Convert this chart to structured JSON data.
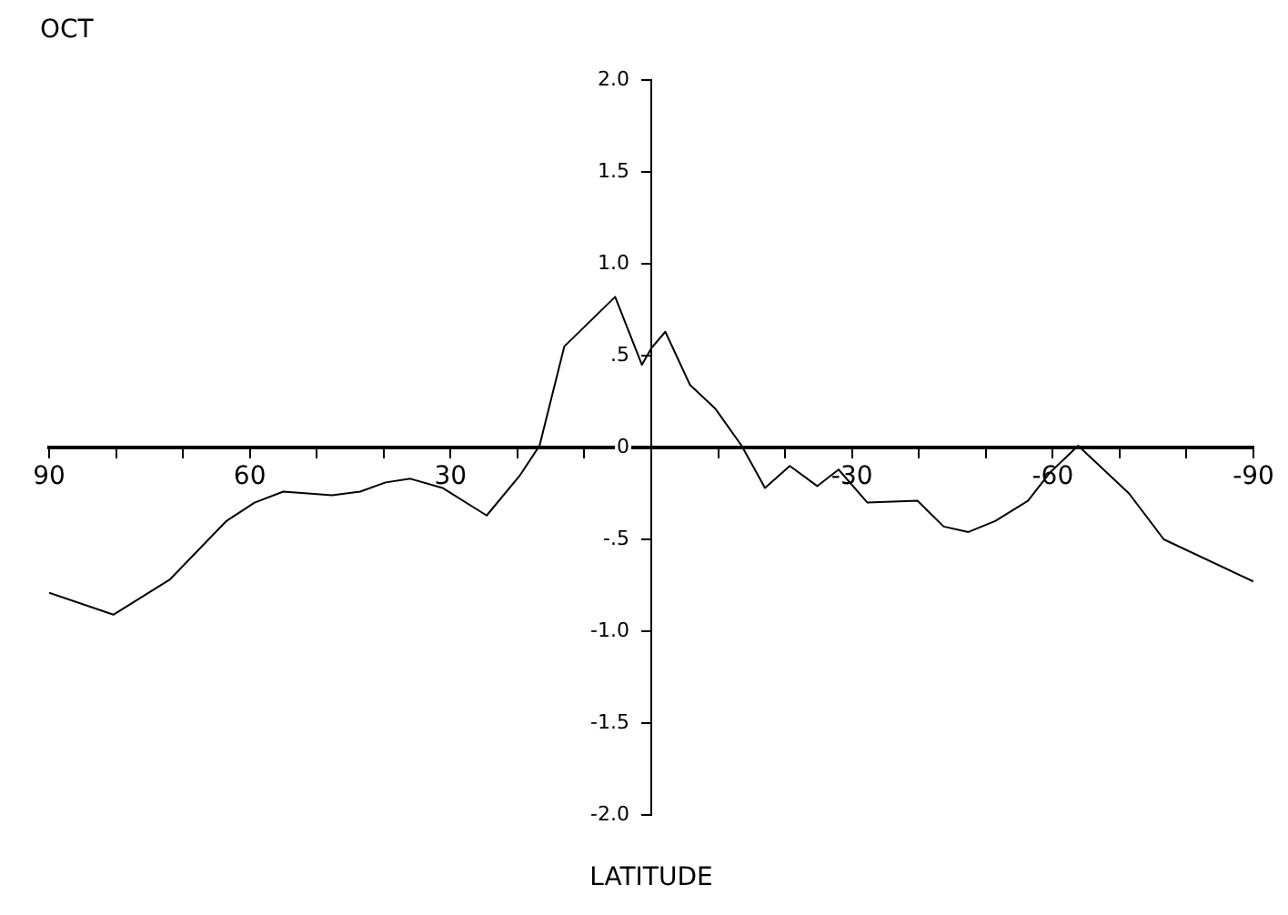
{
  "chart_data": {
    "type": "line",
    "title": "OCT",
    "xlabel": "LATITUDE",
    "x": [
      90,
      80.4,
      72,
      63.5,
      59.3,
      55,
      47.7,
      43.5,
      39.7,
      36,
      31.2,
      24.6,
      19.6,
      16.7,
      13,
      5.4,
      1.4,
      0,
      -2.1,
      -5.8,
      -9.6,
      -13.5,
      -17,
      -20.7,
      -24.8,
      -28,
      -32.3,
      -39.8,
      -43.7,
      -47.4,
      -51.4,
      -56.3,
      -59.5,
      -63.8,
      -71.4,
      -76.6,
      -90
    ],
    "series": [
      {
        "color": "#000000",
        "values": [
          -0.79,
          -0.91,
          -0.72,
          -0.4,
          -0.3,
          -0.24,
          -0.26,
          -0.24,
          -0.19,
          -0.17,
          -0.22,
          -0.37,
          -0.15,
          0.01,
          0.55,
          0.82,
          0.45,
          0.54,
          0.63,
          0.34,
          0.21,
          0.01,
          -0.22,
          -0.1,
          -0.21,
          -0.12,
          -0.3,
          -0.29,
          -0.43,
          -0.46,
          -0.4,
          -0.29,
          -0.14,
          0.01,
          -0.25,
          -0.5,
          -0.73
        ]
      }
    ],
    "xlim": [
      90,
      -90
    ],
    "xticks": [
      90,
      {
        "value": 80,
        "label": null
      },
      {
        "value": 70,
        "label": null
      },
      60,
      {
        "value": 50,
        "label": null
      },
      {
        "value": 40,
        "label": null
      },
      30,
      {
        "value": 20,
        "label": null
      },
      {
        "value": 10,
        "label": null
      },
      {
        "value": 0,
        "label": null
      },
      {
        "value": -10,
        "label": null
      },
      {
        "value": -20,
        "label": null
      },
      -30,
      {
        "value": -40,
        "label": null
      },
      {
        "value": -50,
        "label": null
      },
      -60,
      {
        "value": -70,
        "label": null
      },
      {
        "value": -80,
        "label": null
      },
      -90
    ],
    "ylim": [
      -2,
      2
    ],
    "yticks": [
      {
        "value": 2,
        "label": "2.0"
      },
      1.5,
      {
        "value": 1,
        "label": "1.0"
      },
      {
        "value": 0.5,
        "label": ".5"
      },
      0,
      {
        "value": -0.5,
        "label": "-.5"
      },
      {
        "value": -1,
        "label": "-1.0"
      },
      -1.5,
      {
        "value": -2,
        "label": "-2.0"
      }
    ],
    "grid": false,
    "legend": false
  }
}
